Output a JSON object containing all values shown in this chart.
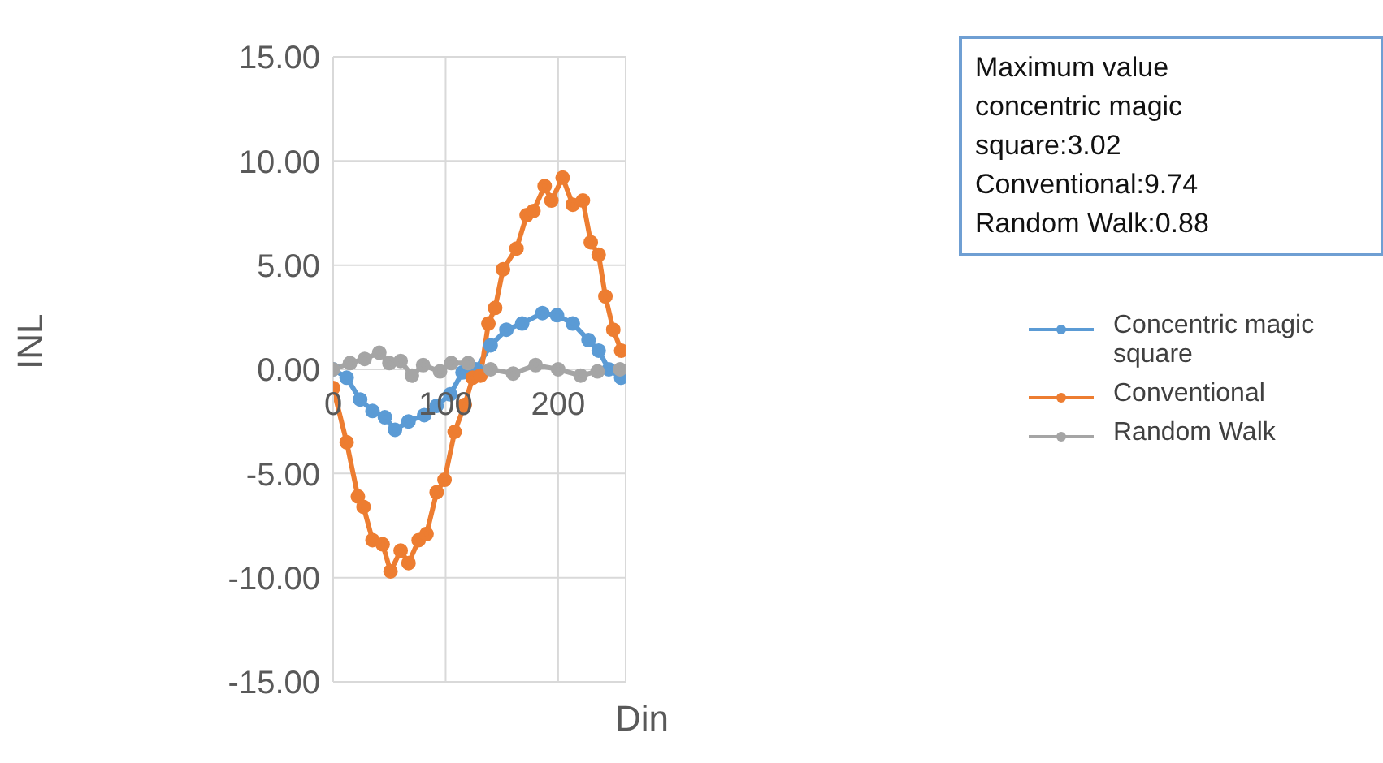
{
  "chart_data": {
    "type": "line",
    "xlabel": "Din",
    "ylabel": "INL",
    "xlim": [
      0,
      260
    ],
    "xticks": [
      0,
      100,
      200
    ],
    "ylim": [
      -15,
      15
    ],
    "yticks": [
      {
        "value": -15,
        "label": "-15.00"
      },
      {
        "value": -10,
        "label": "-10.00"
      },
      {
        "value": -5,
        "label": "-5.00"
      },
      {
        "value": 0,
        "label": "0.00"
      },
      {
        "value": 5,
        "label": "5.00"
      },
      {
        "value": 10,
        "label": "10.00"
      },
      {
        "value": 15,
        "label": "15.00"
      }
    ],
    "grid": true,
    "legend": "right",
    "marker": "circle",
    "line_style": "solid",
    "annotations": [
      "Maximum value concentric magic square:3.02 Conventional:9.74 Random Walk:0.88"
    ],
    "series": [
      {
        "name": "Concentric magic square",
        "color": "#5b9bd5",
        "x": [
          0,
          12,
          24,
          35,
          46,
          55,
          67,
          81,
          92,
          104,
          115,
          127,
          140,
          154,
          168,
          186,
          199,
          213,
          227,
          236,
          245,
          256
        ],
        "values": [
          0,
          -0.4,
          -1.45,
          -2.0,
          -2.3,
          -2.9,
          -2.5,
          -2.2,
          -1.75,
          -1.2,
          -0.15,
          0,
          1.15,
          1.9,
          2.2,
          2.7,
          2.6,
          2.2,
          1.4,
          0.9,
          0,
          -0.4
        ]
      },
      {
        "name": "Conventional",
        "color": "#ed7d31",
        "x": [
          0,
          12,
          22,
          27,
          35,
          44,
          51,
          60,
          67,
          76,
          83,
          92,
          99,
          108,
          117,
          124,
          131,
          138,
          144,
          151,
          163,
          172,
          178,
          188,
          194,
          204,
          213,
          222,
          229,
          236,
          242,
          249,
          256
        ],
        "values": [
          -0.9,
          -3.5,
          -6.1,
          -6.6,
          -8.2,
          -8.4,
          -9.7,
          -8.7,
          -9.3,
          -8.2,
          -7.9,
          -5.9,
          -5.3,
          -3.0,
          -1.7,
          -0.4,
          -0.3,
          2.2,
          2.95,
          4.8,
          5.8,
          7.4,
          7.6,
          8.8,
          8.1,
          9.2,
          7.9,
          8.1,
          6.1,
          5.5,
          3.5,
          1.9,
          0.9
        ]
      },
      {
        "name": "Random Walk",
        "color": "#a5a5a5",
        "x": [
          0,
          15,
          28,
          41,
          50,
          60,
          70,
          80,
          95,
          105,
          120,
          140,
          160,
          180,
          200,
          220,
          235,
          255
        ],
        "values": [
          0,
          0.3,
          0.5,
          0.8,
          0.3,
          0.4,
          -0.3,
          0.2,
          -0.1,
          0.3,
          0.3,
          0,
          -0.2,
          0.2,
          0,
          -0.3,
          -0.1,
          0
        ]
      }
    ]
  }
}
